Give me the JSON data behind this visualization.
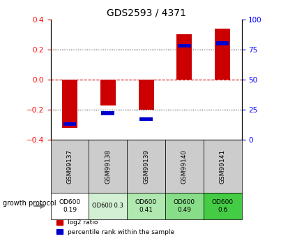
{
  "title": "GDS2593 / 4371",
  "samples": [
    "GSM99137",
    "GSM99138",
    "GSM99139",
    "GSM99140",
    "GSM99141"
  ],
  "log2_ratio": [
    -0.32,
    -0.17,
    -0.2,
    0.3,
    0.34
  ],
  "percentile_rank": [
    13,
    22,
    17,
    78,
    80
  ],
  "ylim_left": [
    -0.4,
    0.4
  ],
  "ylim_right": [
    0,
    100
  ],
  "yticks_left": [
    -0.4,
    -0.2,
    0.0,
    0.2,
    0.4
  ],
  "yticks_right": [
    0,
    25,
    50,
    75,
    100
  ],
  "bar_color_red": "#cc0000",
  "bar_color_blue": "#0000cc",
  "zero_line_color": "#cc0000",
  "protocol_labels": [
    "OD600\n0.19",
    "OD600 0.3",
    "OD600\n0.41",
    "OD600\n0.49",
    "OD600\n0.6"
  ],
  "protocol_bg_colors": [
    "#ffffff",
    "#d4f0d4",
    "#b0e8b0",
    "#88dd88",
    "#44cc44"
  ],
  "header_bg_color": "#cccccc",
  "legend_red": "log2 ratio",
  "legend_blue": "percentile rank within the sample",
  "growth_protocol_label": "growth protocol",
  "bar_width": 0.4
}
